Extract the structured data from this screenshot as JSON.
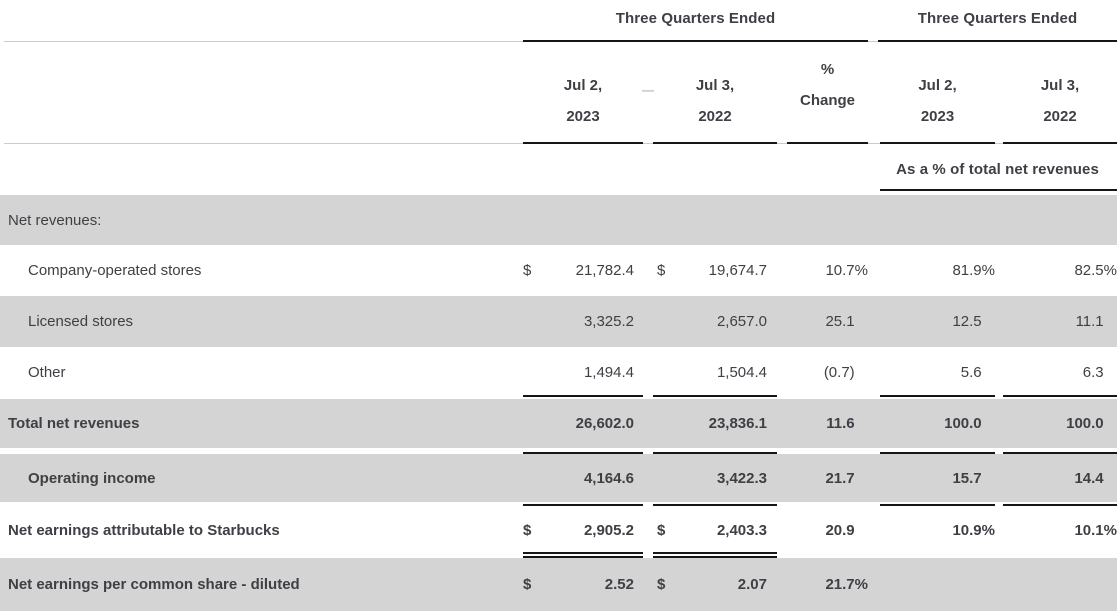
{
  "header": {
    "left_group_title": "Three Quarters Ended",
    "right_group_title": "Three Quarters Ended",
    "col1_line1": "Jul 2,",
    "col1_line2": "2023",
    "separator_dash": "—",
    "col2_line1": "Jul 3,",
    "col2_line2": "2022",
    "change_line1": "%",
    "change_line2": "Change",
    "col3_line1": "Jul 2,",
    "col3_line2": "2023",
    "col4_line1": "Jul 3,",
    "col4_line2": "2022",
    "right_subheader": "As a % of total net revenues"
  },
  "colors": {
    "row_shade": "#d4d4d4",
    "text": "#3f4045",
    "rule_dark": "#161616",
    "rule_light": "#cbcbcb"
  },
  "table": {
    "rows": [
      {
        "label": "Net revenues:",
        "indent": false,
        "bold": false,
        "shade": "gray",
        "d1": "",
        "v1": "",
        "d2": "",
        "v2": "",
        "chg": "",
        "p1": "",
        "p2": ""
      },
      {
        "label": "Company-operated stores",
        "indent": true,
        "bold": false,
        "shade": "white",
        "d1": "$",
        "v1": "21,782.4",
        "d2": "$",
        "v2": "19,674.7",
        "chg": "10.7%",
        "p1": "81.9%",
        "p2": "82.5%"
      },
      {
        "label": "Licensed stores",
        "indent": true,
        "bold": false,
        "shade": "gray",
        "d1": "",
        "v1": "3,325.2",
        "d2": "",
        "v2": "2,657.0",
        "chg": "25.1",
        "p1": "12.5",
        "p2": "11.1"
      },
      {
        "label": "Other",
        "indent": true,
        "bold": false,
        "shade": "white",
        "d1": "",
        "v1": "1,494.4",
        "d2": "",
        "v2": "1,504.4",
        "chg": "(0.7)",
        "p1": "5.6",
        "p2": "6.3"
      },
      {
        "label": "Total net revenues",
        "indent": false,
        "bold": true,
        "shade": "gray",
        "d1": "",
        "v1": "26,602.0",
        "d2": "",
        "v2": "23,836.1",
        "chg": "11.6",
        "p1": "100.0",
        "p2": "100.0"
      },
      {
        "label": "Operating income",
        "indent": true,
        "bold": true,
        "shade": "gray",
        "d1": "",
        "v1": "4,164.6",
        "d2": "",
        "v2": "3,422.3",
        "chg": "21.7",
        "p1": "15.7",
        "p2": "14.4"
      },
      {
        "label": "Net earnings attributable to Starbucks",
        "indent": false,
        "bold": true,
        "shade": "white",
        "d1": "$",
        "v1": "2,905.2",
        "d2": "$",
        "v2": "2,403.3",
        "chg": "20.9",
        "p1": "10.9%",
        "p2": "10.1%"
      },
      {
        "label": "Net earnings per common share - diluted",
        "indent": false,
        "bold": true,
        "shade": "gray",
        "d1": "$",
        "v1": "2.52",
        "d2": "$",
        "v2": "2.07",
        "chg": "21.7%",
        "p1": "",
        "p2": ""
      }
    ]
  }
}
